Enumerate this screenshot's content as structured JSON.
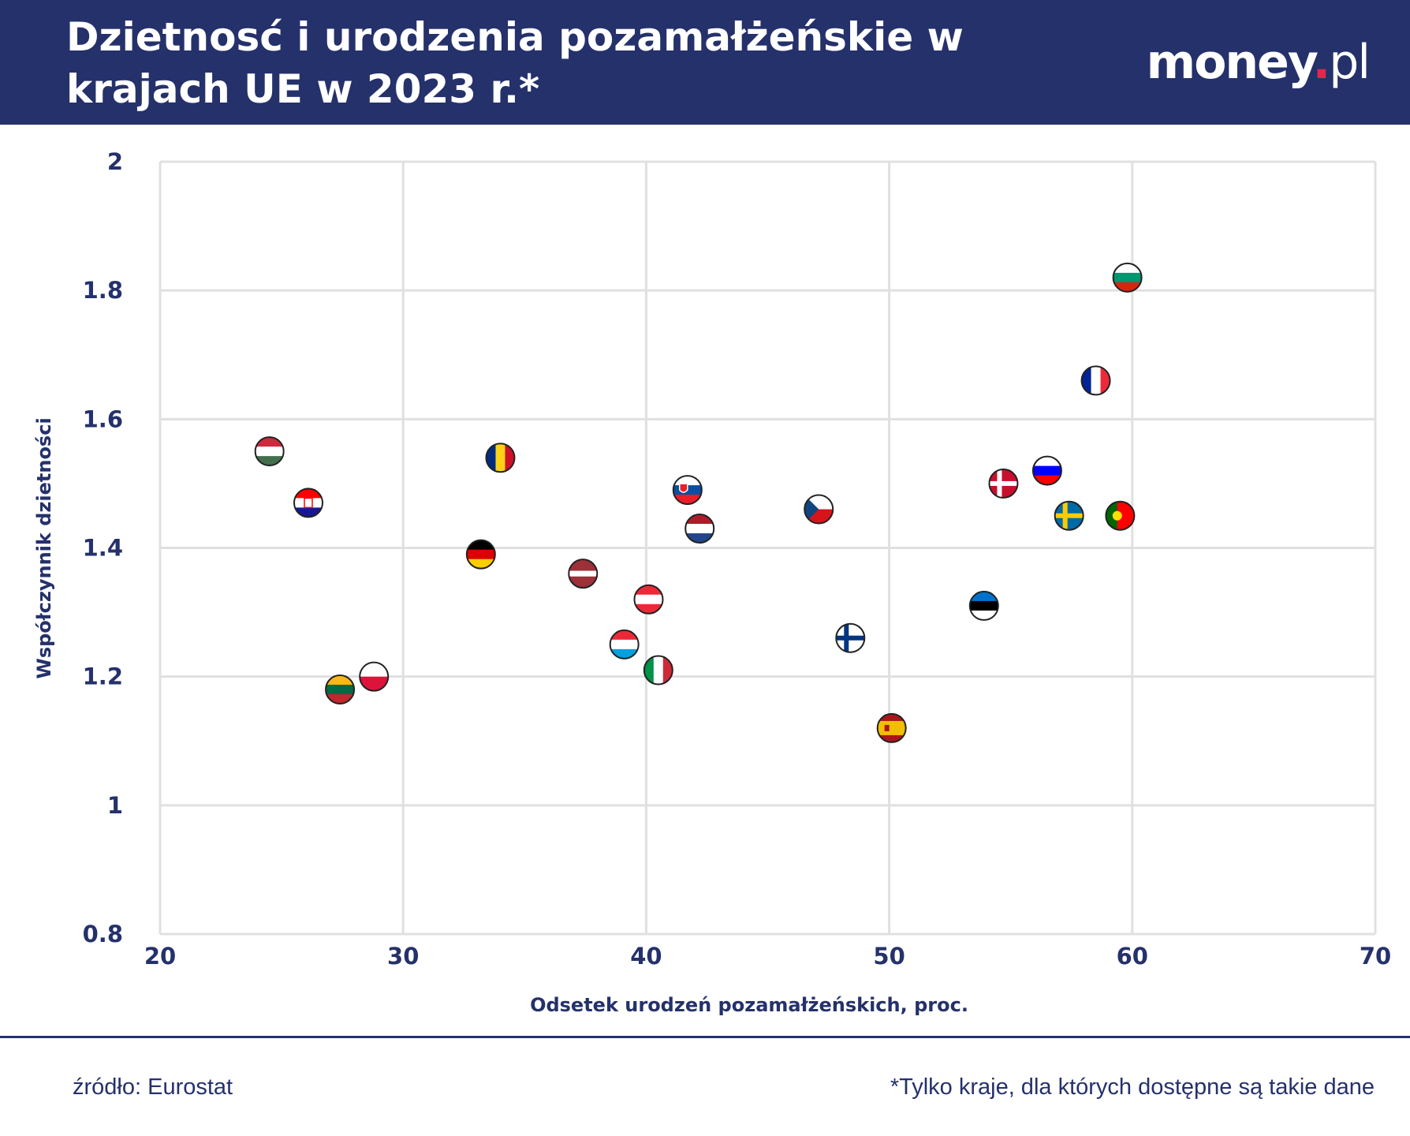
{
  "header": {
    "title": "Dzietnosć i urodzenia pozamałżeńskie w krajach UE w 2023 r.*",
    "logo": {
      "main": "money",
      "dot": ".",
      "suffix": "pl"
    }
  },
  "chart_data": {
    "type": "scatter",
    "title": "Dzietnosć i urodzenia pozamałżeńskie w krajach UE w 2023 r.*",
    "xlabel": "Odsetek urodzeń pozamałżeńskich, proc.",
    "ylabel": "Współczynnik dzietności",
    "xlim": [
      20,
      70
    ],
    "ylim": [
      0.8,
      2
    ],
    "xticks": [
      "20",
      "30",
      "40",
      "50",
      "60",
      "70"
    ],
    "yticks": [
      "0.8",
      "1",
      "1.2",
      "1.4",
      "1.6",
      "1.8",
      "2"
    ],
    "grid": true,
    "marker": "country flag",
    "points": [
      {
        "flag": "flag-hungary",
        "x": 24.5,
        "y": 1.55
      },
      {
        "flag": "flag-croatia",
        "x": 26.1,
        "y": 1.47
      },
      {
        "flag": "flag-lithuania",
        "x": 27.4,
        "y": 1.18
      },
      {
        "flag": "flag-poland",
        "x": 28.8,
        "y": 1.2
      },
      {
        "flag": "flag-germany",
        "x": 33.2,
        "y": 1.39
      },
      {
        "flag": "flag-romania",
        "x": 34.0,
        "y": 1.54
      },
      {
        "flag": "flag-latvia",
        "x": 37.4,
        "y": 1.36
      },
      {
        "flag": "flag-luxembourg",
        "x": 39.1,
        "y": 1.25
      },
      {
        "flag": "flag-austria",
        "x": 40.1,
        "y": 1.32
      },
      {
        "flag": "flag-italy",
        "x": 40.5,
        "y": 1.21
      },
      {
        "flag": "flag-slovakia",
        "x": 41.7,
        "y": 1.49
      },
      {
        "flag": "flag-netherlands",
        "x": 42.2,
        "y": 1.43
      },
      {
        "flag": "flag-czechia",
        "x": 47.1,
        "y": 1.46
      },
      {
        "flag": "flag-finland",
        "x": 48.4,
        "y": 1.26
      },
      {
        "flag": "flag-spain",
        "x": 50.1,
        "y": 1.12
      },
      {
        "flag": "flag-estonia",
        "x": 53.9,
        "y": 1.31
      },
      {
        "flag": "flag-denmark",
        "x": 54.7,
        "y": 1.5
      },
      {
        "flag": "flag-slovenia",
        "x": 56.5,
        "y": 1.52
      },
      {
        "flag": "flag-sweden",
        "x": 57.4,
        "y": 1.45
      },
      {
        "flag": "flag-france",
        "x": 58.5,
        "y": 1.66
      },
      {
        "flag": "flag-portugal",
        "x": 59.5,
        "y": 1.45
      },
      {
        "flag": "flag-bulgaria",
        "x": 59.8,
        "y": 1.82
      }
    ]
  },
  "footer": {
    "source": "źródło: Eurostat",
    "note": "*Tylko kraje, dla których dostępne są takie dane"
  }
}
